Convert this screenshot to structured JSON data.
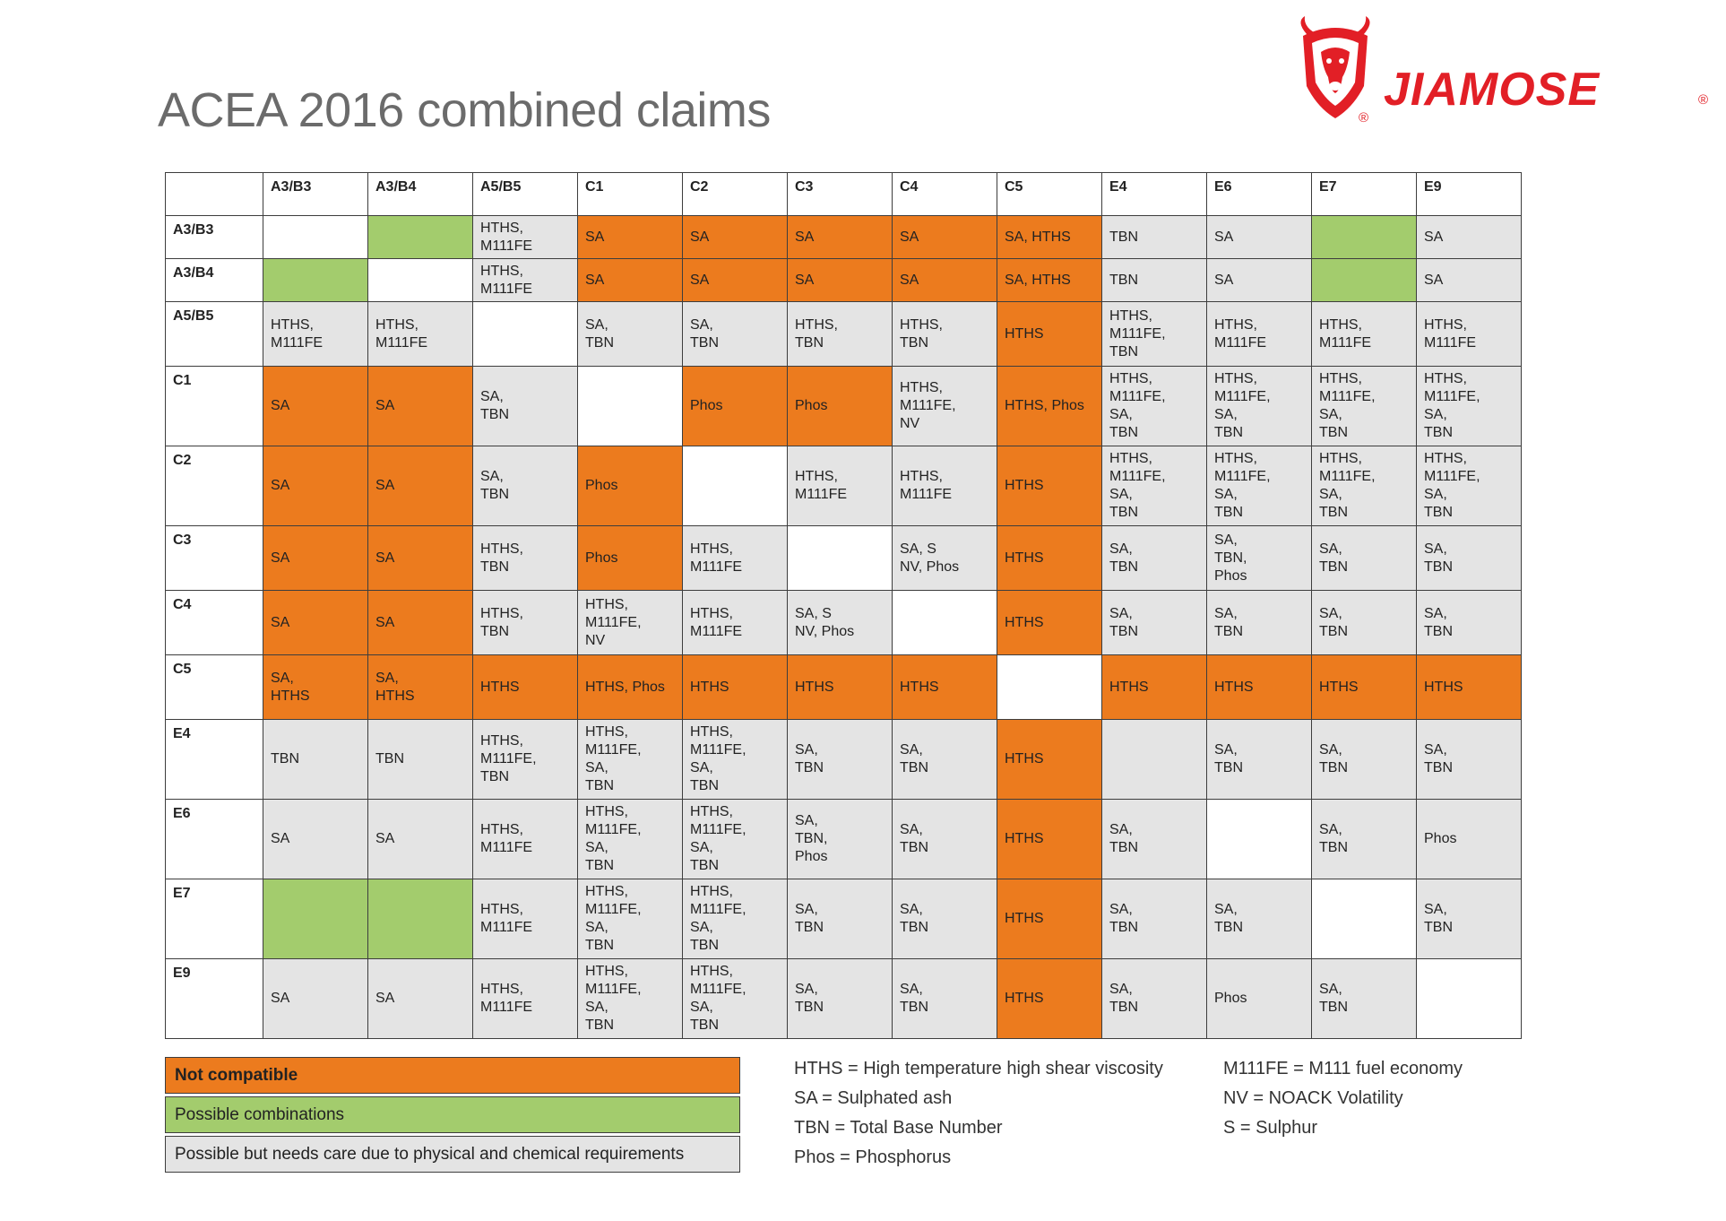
{
  "title": "ACEA 2016 combined claims",
  "brand": {
    "name": "JIAMOSE",
    "registered": "®",
    "color": "#e21f26",
    "icon": "bull-shield-icon"
  },
  "colors": {
    "not_compatible": "#ec7b1e",
    "possible": "#a3cc6d",
    "care": "#e4e4e4",
    "blank": "#ffffff"
  },
  "columns": [
    "A3/B3",
    "A3/B4",
    "A5/B5",
    "C1",
    "C2",
    "C3",
    "C4",
    "C5",
    "E4",
    "E6",
    "E7",
    "E9"
  ],
  "rows": [
    {
      "label": "A3/B3",
      "height": 48,
      "cells": [
        {
          "t": "",
          "c": "b"
        },
        {
          "t": "",
          "c": "p"
        },
        {
          "t": "HTHS,\nM111FE",
          "c": "c"
        },
        {
          "t": "SA",
          "c": "n"
        },
        {
          "t": "SA",
          "c": "n"
        },
        {
          "t": "SA",
          "c": "n"
        },
        {
          "t": "SA",
          "c": "n"
        },
        {
          "t": "SA, HTHS",
          "c": "n"
        },
        {
          "t": "TBN",
          "c": "c"
        },
        {
          "t": "SA",
          "c": "c"
        },
        {
          "t": "",
          "c": "p"
        },
        {
          "t": "SA",
          "c": "c"
        }
      ]
    },
    {
      "label": "A3/B4",
      "height": 48,
      "cells": [
        {
          "t": "",
          "c": "p"
        },
        {
          "t": "",
          "c": "b"
        },
        {
          "t": "HTHS,\nM111FE",
          "c": "c"
        },
        {
          "t": "SA",
          "c": "n"
        },
        {
          "t": "SA",
          "c": "n"
        },
        {
          "t": "SA",
          "c": "n"
        },
        {
          "t": "SA",
          "c": "n"
        },
        {
          "t": "SA, HTHS",
          "c": "n"
        },
        {
          "t": "TBN",
          "c": "c"
        },
        {
          "t": "SA",
          "c": "c"
        },
        {
          "t": "",
          "c": "p"
        },
        {
          "t": "SA",
          "c": "c"
        }
      ]
    },
    {
      "label": "A5/B5",
      "height": 72,
      "cells": [
        {
          "t": "HTHS,\nM111FE",
          "c": "c"
        },
        {
          "t": "HTHS,\nM111FE",
          "c": "c"
        },
        {
          "t": "",
          "c": "b"
        },
        {
          "t": "SA,\nTBN",
          "c": "c"
        },
        {
          "t": "SA,\nTBN",
          "c": "c"
        },
        {
          "t": "HTHS,\nTBN",
          "c": "c"
        },
        {
          "t": "HTHS,\nTBN",
          "c": "c"
        },
        {
          "t": "HTHS",
          "c": "n"
        },
        {
          "t": "HTHS,\nM111FE,\nTBN",
          "c": "c"
        },
        {
          "t": "HTHS,\nM111FE",
          "c": "c"
        },
        {
          "t": "HTHS,\nM111FE",
          "c": "c"
        },
        {
          "t": "HTHS,\nM111FE",
          "c": "c"
        }
      ]
    },
    {
      "label": "C1",
      "height": 89,
      "cells": [
        {
          "t": "SA",
          "c": "n"
        },
        {
          "t": "SA",
          "c": "n"
        },
        {
          "t": "SA,\nTBN",
          "c": "c"
        },
        {
          "t": "",
          "c": "b"
        },
        {
          "t": "Phos",
          "c": "n"
        },
        {
          "t": "Phos",
          "c": "n"
        },
        {
          "t": "HTHS,\nM111FE,\nNV",
          "c": "c"
        },
        {
          "t": "HTHS, Phos",
          "c": "n"
        },
        {
          "t": "HTHS,\nM111FE,\nSA,\nTBN",
          "c": "c"
        },
        {
          "t": "HTHS,\nM111FE,\nSA,\nTBN",
          "c": "c"
        },
        {
          "t": "HTHS,\nM111FE,\nSA,\nTBN",
          "c": "c"
        },
        {
          "t": "HTHS,\nM111FE,\nSA,\nTBN",
          "c": "c"
        }
      ]
    },
    {
      "label": "C2",
      "height": 89,
      "cells": [
        {
          "t": "SA",
          "c": "n"
        },
        {
          "t": "SA",
          "c": "n"
        },
        {
          "t": "SA,\nTBN",
          "c": "c"
        },
        {
          "t": "Phos",
          "c": "n"
        },
        {
          "t": "",
          "c": "b"
        },
        {
          "t": "HTHS,\nM111FE",
          "c": "c"
        },
        {
          "t": "HTHS,\nM111FE",
          "c": "c"
        },
        {
          "t": "HTHS",
          "c": "n"
        },
        {
          "t": "HTHS,\nM111FE,\nSA,\nTBN",
          "c": "c"
        },
        {
          "t": "HTHS,\nM111FE,\nSA,\nTBN",
          "c": "c"
        },
        {
          "t": "HTHS,\nM111FE,\nSA,\nTBN",
          "c": "c"
        },
        {
          "t": "HTHS,\nM111FE,\nSA,\nTBN",
          "c": "c"
        }
      ]
    },
    {
      "label": "C3",
      "height": 72,
      "cells": [
        {
          "t": "SA",
          "c": "n"
        },
        {
          "t": "SA",
          "c": "n"
        },
        {
          "t": "HTHS,\nTBN",
          "c": "c"
        },
        {
          "t": "Phos",
          "c": "n"
        },
        {
          "t": "HTHS,\nM111FE",
          "c": "c"
        },
        {
          "t": "",
          "c": "b"
        },
        {
          "t": "SA, S\nNV, Phos",
          "c": "c"
        },
        {
          "t": "HTHS",
          "c": "n"
        },
        {
          "t": "SA,\nTBN",
          "c": "c"
        },
        {
          "t": "SA,\nTBN,\nPhos",
          "c": "c"
        },
        {
          "t": "SA,\nTBN",
          "c": "c"
        },
        {
          "t": "SA,\nTBN",
          "c": "c"
        }
      ]
    },
    {
      "label": "C4",
      "height": 72,
      "cells": [
        {
          "t": "SA",
          "c": "n"
        },
        {
          "t": "SA",
          "c": "n"
        },
        {
          "t": "HTHS,\nTBN",
          "c": "c"
        },
        {
          "t": "HTHS,\nM111FE,\nNV",
          "c": "c"
        },
        {
          "t": "HTHS,\nM111FE",
          "c": "c"
        },
        {
          "t": "SA, S\nNV, Phos",
          "c": "c"
        },
        {
          "t": "",
          "c": "b"
        },
        {
          "t": "HTHS",
          "c": "n"
        },
        {
          "t": "SA,\nTBN",
          "c": "c"
        },
        {
          "t": "SA,\nTBN",
          "c": "c"
        },
        {
          "t": "SA,\nTBN",
          "c": "c"
        },
        {
          "t": "SA,\nTBN",
          "c": "c"
        }
      ]
    },
    {
      "label": "C5",
      "height": 72,
      "cells": [
        {
          "t": "SA,\nHTHS",
          "c": "n"
        },
        {
          "t": "SA,\nHTHS",
          "c": "n"
        },
        {
          "t": "HTHS",
          "c": "n"
        },
        {
          "t": "HTHS, Phos",
          "c": "n"
        },
        {
          "t": "HTHS",
          "c": "n"
        },
        {
          "t": "HTHS",
          "c": "n"
        },
        {
          "t": "HTHS",
          "c": "n"
        },
        {
          "t": "",
          "c": "b"
        },
        {
          "t": "HTHS",
          "c": "n"
        },
        {
          "t": "HTHS",
          "c": "n"
        },
        {
          "t": "HTHS",
          "c": "n"
        },
        {
          "t": "HTHS",
          "c": "n"
        }
      ]
    },
    {
      "label": "E4",
      "height": 89,
      "cells": [
        {
          "t": "TBN",
          "c": "c"
        },
        {
          "t": "TBN",
          "c": "c"
        },
        {
          "t": "HTHS,\nM111FE,\nTBN",
          "c": "c"
        },
        {
          "t": "HTHS,\nM111FE,\nSA,\nTBN",
          "c": "c"
        },
        {
          "t": "HTHS,\nM111FE,\nSA,\nTBN",
          "c": "c"
        },
        {
          "t": "SA,\nTBN",
          "c": "c"
        },
        {
          "t": "SA,\nTBN",
          "c": "c"
        },
        {
          "t": "HTHS",
          "c": "n"
        },
        {
          "t": "",
          "c": "c"
        },
        {
          "t": "SA,\nTBN",
          "c": "c"
        },
        {
          "t": "SA,\nTBN",
          "c": "c"
        },
        {
          "t": "SA,\nTBN",
          "c": "c"
        }
      ]
    },
    {
      "label": "E6",
      "height": 89,
      "cells": [
        {
          "t": "SA",
          "c": "c"
        },
        {
          "t": "SA",
          "c": "c"
        },
        {
          "t": "HTHS,\nM111FE",
          "c": "c"
        },
        {
          "t": "HTHS,\nM111FE,\nSA,\nTBN",
          "c": "c"
        },
        {
          "t": "HTHS,\nM111FE,\nSA,\nTBN",
          "c": "c"
        },
        {
          "t": "SA,\nTBN,\nPhos",
          "c": "c"
        },
        {
          "t": "SA,\nTBN",
          "c": "c"
        },
        {
          "t": "HTHS",
          "c": "n"
        },
        {
          "t": "SA,\nTBN",
          "c": "c"
        },
        {
          "t": "",
          "c": "b"
        },
        {
          "t": "SA,\nTBN",
          "c": "c"
        },
        {
          "t": "Phos",
          "c": "c"
        }
      ]
    },
    {
      "label": "E7",
      "height": 89,
      "cells": [
        {
          "t": "",
          "c": "p"
        },
        {
          "t": "",
          "c": "p"
        },
        {
          "t": "HTHS,\nM111FE",
          "c": "c"
        },
        {
          "t": "HTHS,\nM111FE,\nSA,\nTBN",
          "c": "c"
        },
        {
          "t": "HTHS,\nM111FE,\nSA,\nTBN",
          "c": "c"
        },
        {
          "t": "SA,\nTBN",
          "c": "c"
        },
        {
          "t": "SA,\nTBN",
          "c": "c"
        },
        {
          "t": "HTHS",
          "c": "n"
        },
        {
          "t": "SA,\nTBN",
          "c": "c"
        },
        {
          "t": "SA,\nTBN",
          "c": "c"
        },
        {
          "t": "",
          "c": "b"
        },
        {
          "t": "SA,\nTBN",
          "c": "c"
        }
      ]
    },
    {
      "label": "E9",
      "height": 89,
      "cells": [
        {
          "t": "SA",
          "c": "c"
        },
        {
          "t": "SA",
          "c": "c"
        },
        {
          "t": "HTHS,\nM111FE",
          "c": "c"
        },
        {
          "t": "HTHS,\nM111FE,\nSA,\nTBN",
          "c": "c"
        },
        {
          "t": "HTHS,\nM111FE,\nSA,\nTBN",
          "c": "c"
        },
        {
          "t": "SA,\nTBN",
          "c": "c"
        },
        {
          "t": "SA,\nTBN",
          "c": "c"
        },
        {
          "t": "HTHS",
          "c": "n"
        },
        {
          "t": "SA,\nTBN",
          "c": "c"
        },
        {
          "t": "Phos",
          "c": "c"
        },
        {
          "t": "SA,\nTBN",
          "c": "c"
        },
        {
          "t": "",
          "c": "b"
        }
      ]
    }
  ],
  "legend": [
    {
      "label": "Not compatible",
      "key": "n"
    },
    {
      "label": "Possible combinations",
      "key": "p"
    },
    {
      "label": "Possible but needs care due to physical and chemical requirements",
      "key": "c"
    }
  ],
  "abbreviations_left": [
    "HTHS = High temperature high shear viscosity",
    "SA = Sulphated ash",
    "TBN = Total Base Number",
    "Phos = Phosphorus"
  ],
  "abbreviations_right": [
    "M111FE = M111 fuel economy",
    "NV = NOACK Volatility",
    "S = Sulphur"
  ]
}
